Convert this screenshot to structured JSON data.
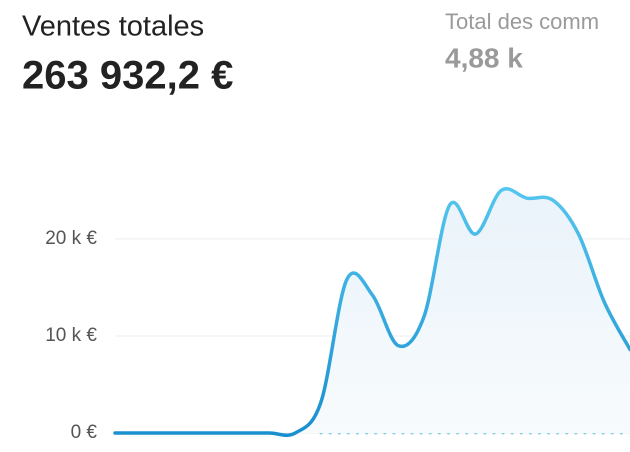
{
  "header": {
    "title": "Ventes totales",
    "total": "263 932,2 €",
    "secondary_title": "Total des comm",
    "secondary_value": "4,88 k"
  },
  "chart_data": {
    "type": "line",
    "categories": [
      null,
      null,
      null,
      null,
      null,
      null,
      null,
      null,
      null,
      null,
      null,
      null,
      null,
      null,
      null,
      null,
      null,
      null,
      null,
      null,
      null
    ],
    "series": [
      {
        "color": "#2a9fd8",
        "values": [
          0,
          0,
          0,
          0,
          0,
          0,
          0,
          0,
          3200,
          15800,
          14200,
          9000,
          12000,
          23500,
          20500,
          25000,
          24200,
          24000,
          20500,
          13500,
          8600
        ]
      },
      {
        "color": "#7fd0e6",
        "dashed": true,
        "values": [
          null,
          null,
          null,
          null,
          null,
          null,
          null,
          null,
          0,
          0,
          0,
          0,
          0,
          0,
          0,
          0,
          0,
          0,
          0,
          0,
          0
        ]
      }
    ],
    "ylim": [
      0,
      27000
    ],
    "yticks": [
      {
        "value": 0,
        "label": "0 €"
      },
      {
        "value": 10000,
        "label": "10 k €"
      },
      {
        "value": 20000,
        "label": "20 k €"
      }
    ],
    "grid": true
  }
}
